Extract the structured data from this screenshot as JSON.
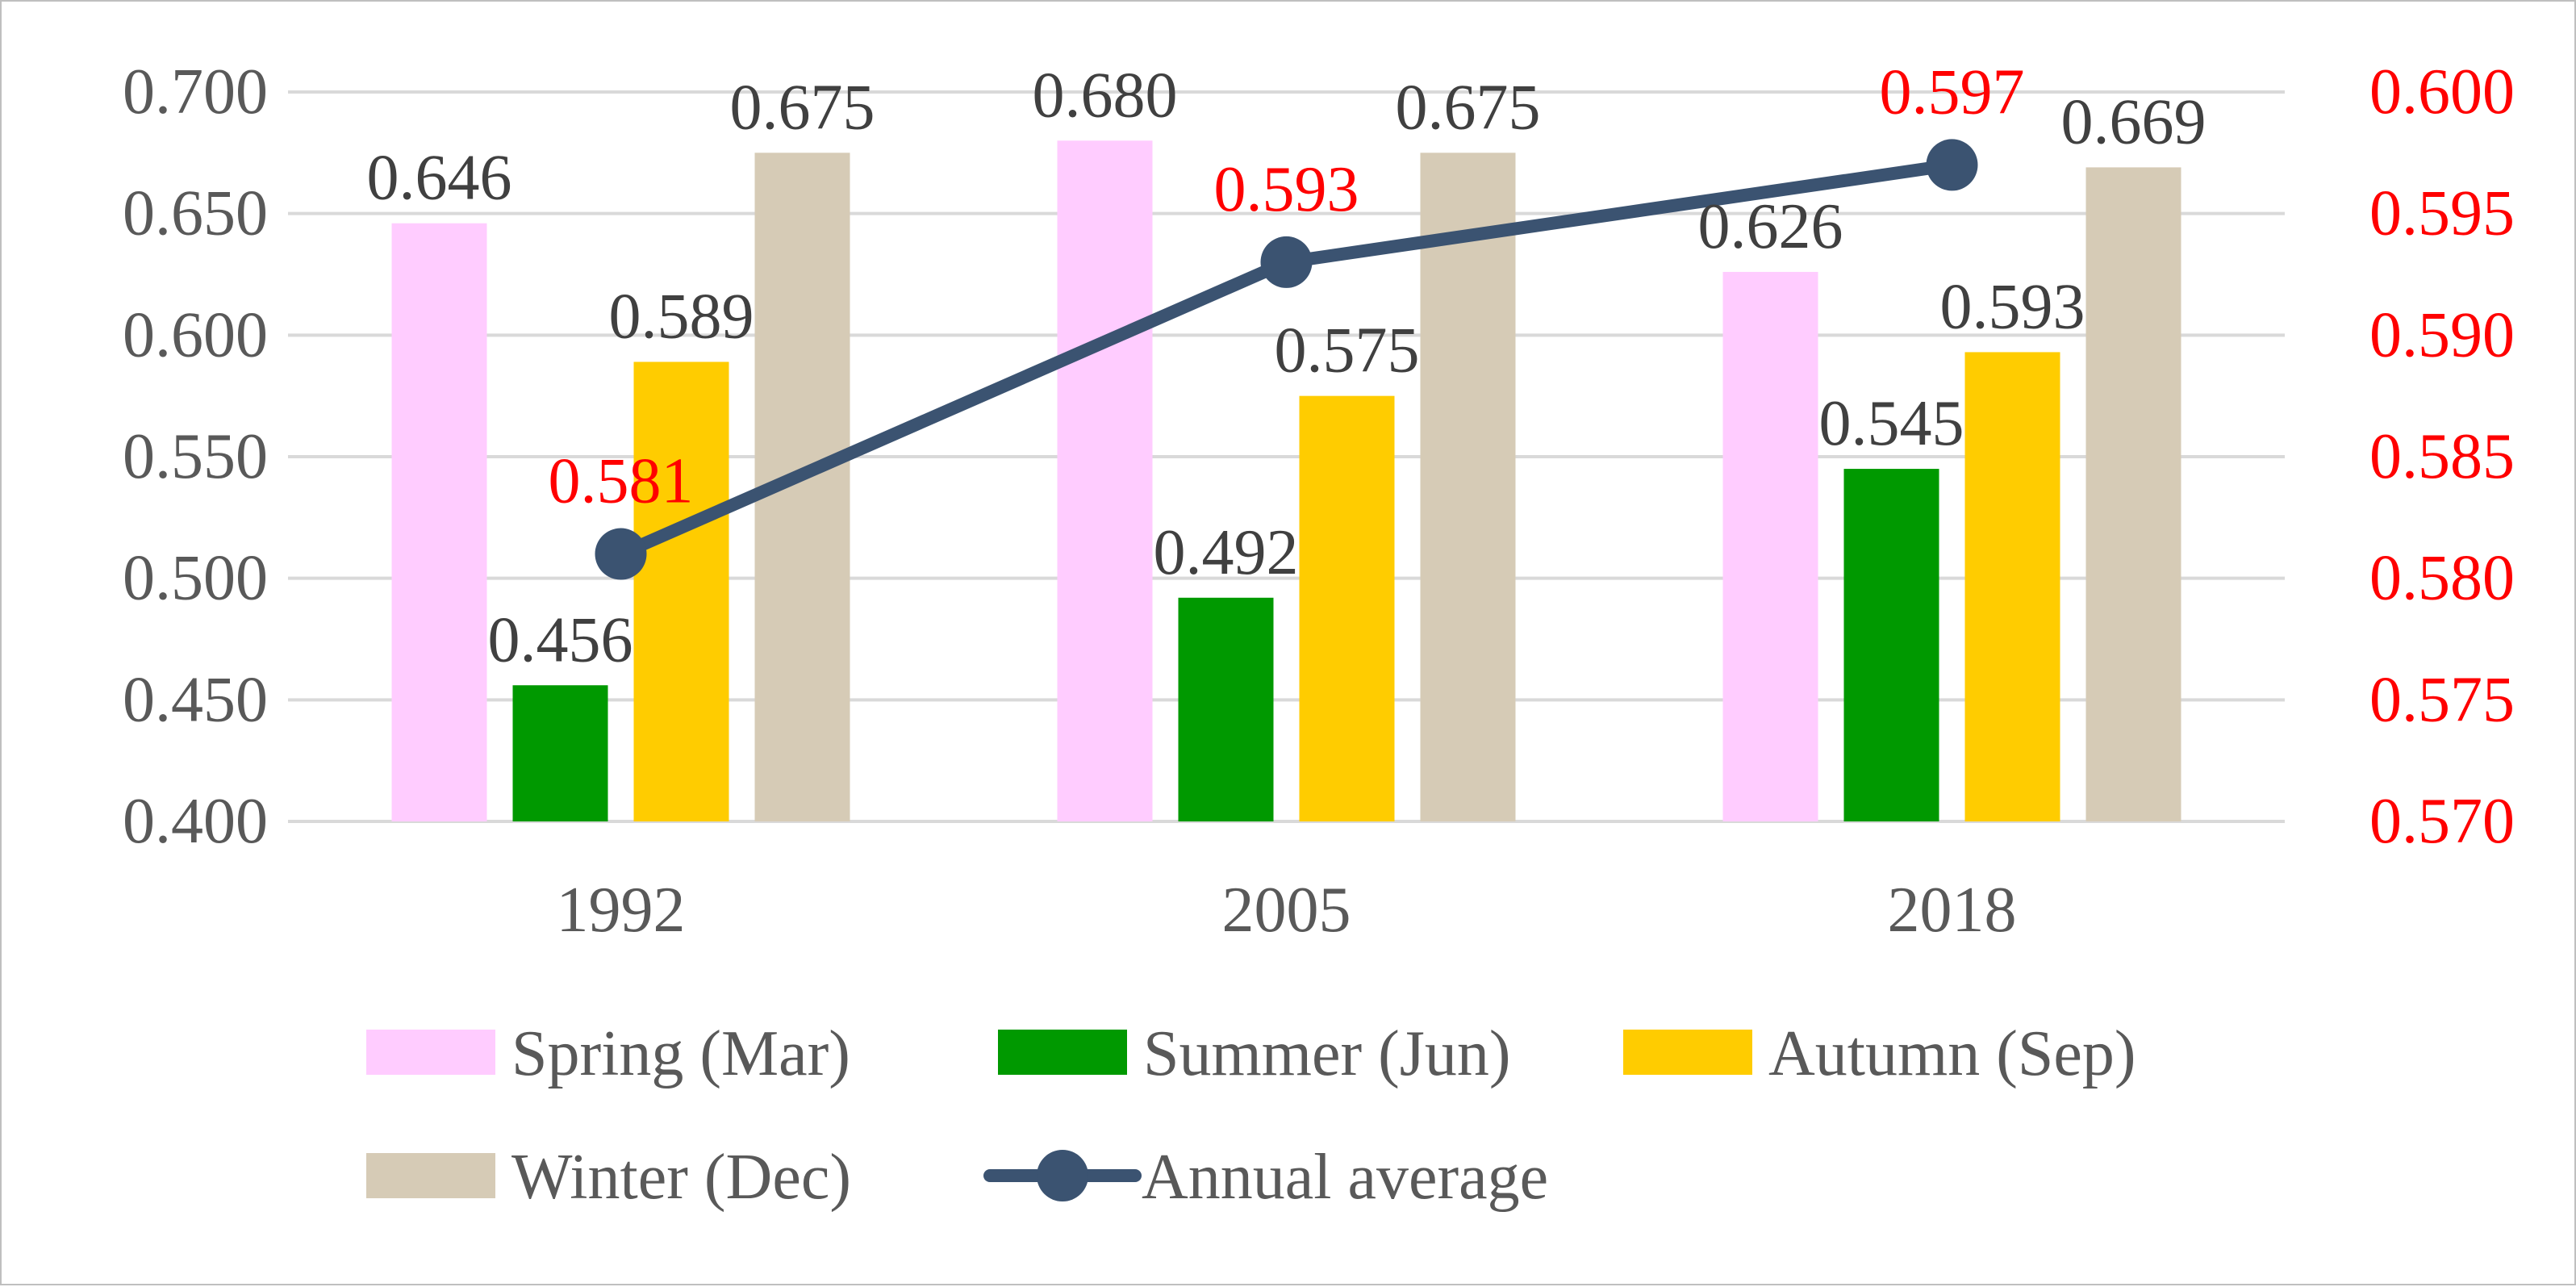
{
  "chart_data": {
    "type": "bar",
    "title": "",
    "xlabel": "",
    "ylabel": "",
    "categories": [
      "1992",
      "2005",
      "2018"
    ],
    "series": [
      {
        "name": "Spring (Mar)",
        "values": [
          0.646,
          0.68,
          0.626
        ],
        "labels": [
          "0.646",
          "0.680",
          "0.626"
        ],
        "color": "#ffccff"
      },
      {
        "name": "Summer (Jun)",
        "values": [
          0.456,
          0.492,
          0.545
        ],
        "labels": [
          "0.456",
          "0.492",
          "0.545"
        ],
        "color": "#009900"
      },
      {
        "name": "Autumn (Sep)",
        "values": [
          0.589,
          0.575,
          0.593
        ],
        "labels": [
          "0.589",
          "0.575",
          "0.593"
        ],
        "color": "#ffcc00"
      },
      {
        "name": "Winter (Dec)",
        "values": [
          0.675,
          0.675,
          0.669
        ],
        "labels": [
          "0.675",
          "0.675",
          "0.669"
        ],
        "color": "#d6cbb6"
      }
    ],
    "line_series": {
      "name": "Annual average",
      "type": "line",
      "axis": "secondary",
      "values": [
        0.581,
        0.593,
        0.597
      ],
      "labels": [
        "0.581",
        "0.593",
        "0.597"
      ],
      "color": "#3b5371",
      "label_color": "#ff0000"
    },
    "y_axis": {
      "ylim": [
        0.4,
        0.7
      ],
      "ticks": [
        "0.700",
        "0.650",
        "0.600",
        "0.550",
        "0.500",
        "0.450",
        "0.400"
      ],
      "tick_values": [
        0.7,
        0.65,
        0.6,
        0.55,
        0.5,
        0.45,
        0.4
      ],
      "color": "#595959"
    },
    "y2_axis": {
      "ylim": [
        0.57,
        0.6
      ],
      "ticks": [
        "0.600",
        "0.595",
        "0.590",
        "0.585",
        "0.580",
        "0.575",
        "0.570"
      ],
      "tick_values": [
        0.6,
        0.595,
        0.59,
        0.585,
        0.58,
        0.575,
        0.57
      ],
      "color": "#ff0000"
    },
    "grid": true,
    "legend_position": "bottom",
    "legend": [
      "Spring (Mar)",
      "Summer (Jun)",
      "Autumn (Sep)",
      "Winter (Dec)",
      "Annual average"
    ]
  }
}
